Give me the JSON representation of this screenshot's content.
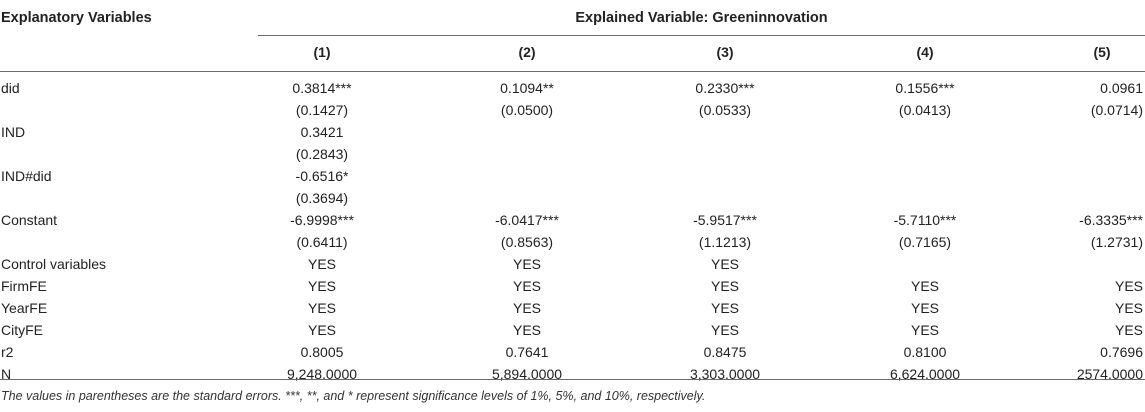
{
  "header": {
    "explanatory_label": "Explanatory Variables",
    "explained_label": "Explained Variable: Greeninnovation",
    "columns": [
      "(1)",
      "(2)",
      "(3)",
      "(4)",
      "(5)"
    ]
  },
  "rows": [
    {
      "label": "did",
      "values": [
        "0.3814***",
        "0.1094**",
        "0.2330***",
        "0.1556***",
        "0.0961"
      ]
    },
    {
      "label": "",
      "values": [
        "(0.1427)",
        "(0.0500)",
        "(0.0533)",
        "(0.0413)",
        "(0.0714)"
      ]
    },
    {
      "label": "IND",
      "values": [
        "0.3421",
        "",
        "",
        "",
        ""
      ]
    },
    {
      "label": "",
      "values": [
        "(0.2843)",
        "",
        "",
        "",
        ""
      ]
    },
    {
      "label": "IND#did",
      "values": [
        "-0.6516*",
        "",
        "",
        "",
        ""
      ]
    },
    {
      "label": "",
      "values": [
        "(0.3694)",
        "",
        "",
        "",
        ""
      ]
    },
    {
      "label": "Constant",
      "values": [
        "-6.9998***",
        "-6.0417***",
        "-5.9517***",
        "-5.7110***",
        "-6.3335***"
      ]
    },
    {
      "label": "",
      "values": [
        "(0.6411)",
        "(0.8563)",
        "(1.1213)",
        "(0.7165)",
        "(1.2731)"
      ]
    },
    {
      "label": "Control variables",
      "values": [
        "YES",
        "YES",
        "YES",
        "",
        ""
      ]
    },
    {
      "label": "FirmFE",
      "values": [
        "YES",
        "YES",
        "YES",
        "YES",
        "YES"
      ]
    },
    {
      "label": "YearFE",
      "values": [
        "YES",
        "YES",
        "YES",
        "YES",
        "YES"
      ]
    },
    {
      "label": "CityFE",
      "values": [
        "YES",
        "YES",
        "YES",
        "YES",
        "YES"
      ]
    },
    {
      "label": "r2",
      "values": [
        "0.8005",
        "0.7641",
        "0.8475",
        "0.8100",
        "0.7696"
      ]
    },
    {
      "label": "N",
      "values": [
        "9,248.0000",
        "5,894.0000",
        "3,303.0000",
        "6,624.0000",
        "2574.0000"
      ]
    }
  ],
  "footnote": "The values in parentheses are the standard errors. ***, **, and * represent significance levels of 1%, 5%, and 10%, respectively."
}
